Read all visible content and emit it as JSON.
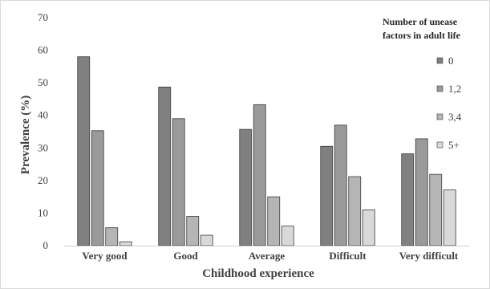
{
  "chart_data": {
    "type": "bar",
    "title": "",
    "xlabel": "Childhood experience",
    "ylabel": "Prevalence (%)",
    "ylim": [
      0,
      70
    ],
    "yticks": [
      "0",
      "10",
      "20",
      "30",
      "40",
      "50",
      "60",
      "70"
    ],
    "grid": false,
    "legend_position": "top-right",
    "legend_title_lines": [
      "Number of unease",
      "factors in adult life"
    ],
    "categories": [
      "Very good",
      "Good",
      "Average",
      "Difficult",
      "Very difficult"
    ],
    "series": [
      {
        "name": "0",
        "color": "#808080",
        "values": [
          58,
          48.7,
          35.7,
          30.5,
          28.2
        ]
      },
      {
        "name": "1,2",
        "color": "#9a9a9a",
        "values": [
          35.3,
          39,
          43.3,
          37,
          32.8
        ]
      },
      {
        "name": "3,4",
        "color": "#b5b5b5",
        "values": [
          5.5,
          9,
          15,
          21.2,
          21.9
        ]
      },
      {
        "name": "5+",
        "color": "#d9d9d9",
        "values": [
          1.2,
          3.2,
          6,
          11,
          17.1
        ]
      }
    ]
  }
}
